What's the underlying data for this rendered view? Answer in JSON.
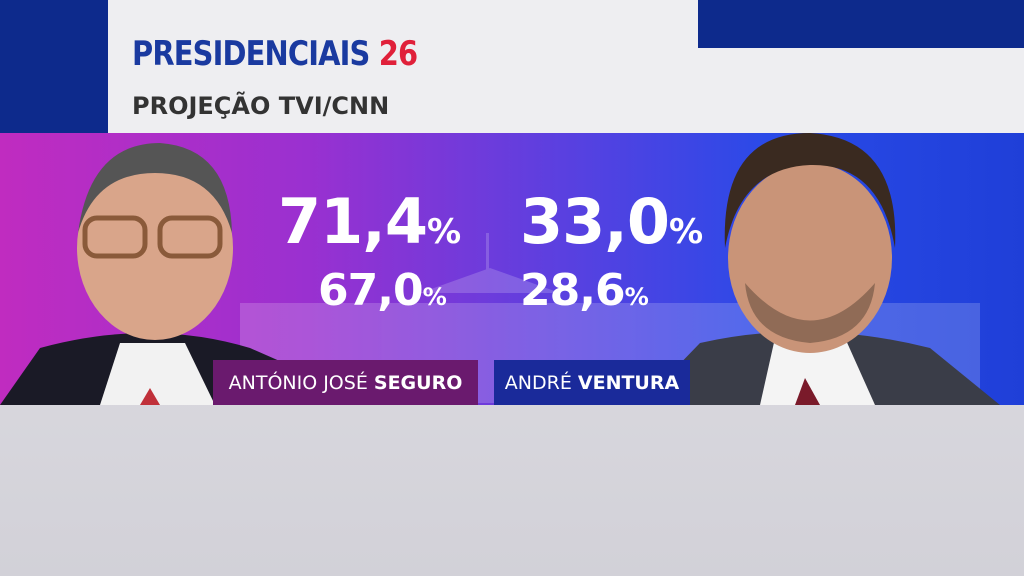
{
  "header": {
    "title": "PRESIDENCIAIS",
    "title_year": "26",
    "subtitle": "PROJEÇÃO TVI/CNN"
  },
  "candidates": [
    {
      "first_name": "ANTÓNIO JOSÉ",
      "last_name": "SEGURO",
      "high": {
        "number": "71,4",
        "unit": "%"
      },
      "low": {
        "number": "67,0",
        "unit": "%"
      }
    },
    {
      "first_name": "ANDRÉ",
      "last_name": "VENTURA",
      "high": {
        "number": "33,0",
        "unit": "%"
      },
      "low": {
        "number": "28,6",
        "unit": "%"
      }
    }
  ]
}
